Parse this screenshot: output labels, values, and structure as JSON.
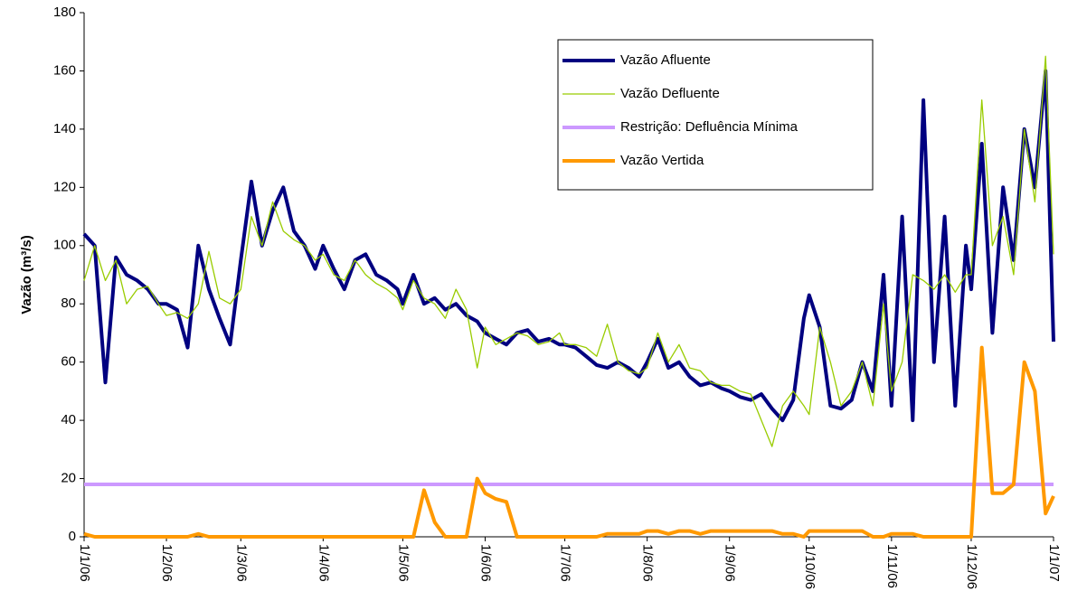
{
  "chart_data": {
    "type": "line",
    "ylabel": "Vazão (m³/s)",
    "x": [
      "1/1/06",
      "5/1/06",
      "9/1/06",
      "13/1/06",
      "17/1/06",
      "21/1/06",
      "25/1/06",
      "29/1/06",
      "1/2/06",
      "5/2/06",
      "9/2/06",
      "13/2/06",
      "17/2/06",
      "21/2/06",
      "25/2/06",
      "1/3/06",
      "5/3/06",
      "9/3/06",
      "13/3/06",
      "17/3/06",
      "21/3/06",
      "25/3/06",
      "29/3/06",
      "1/4/06",
      "5/4/06",
      "9/4/06",
      "13/4/06",
      "17/4/06",
      "21/4/06",
      "25/4/06",
      "29/4/06",
      "1/5/06",
      "5/5/06",
      "9/5/06",
      "13/5/06",
      "17/5/06",
      "21/5/06",
      "25/5/06",
      "29/5/06",
      "1/6/06",
      "5/6/06",
      "9/6/06",
      "13/6/06",
      "17/6/06",
      "21/6/06",
      "25/6/06",
      "29/6/06",
      "1/7/06",
      "5/7/06",
      "9/7/06",
      "13/7/06",
      "17/7/06",
      "21/7/06",
      "25/7/06",
      "29/7/06",
      "1/8/06",
      "5/8/06",
      "9/8/06",
      "13/8/06",
      "17/8/06",
      "21/8/06",
      "25/8/06",
      "29/8/06",
      "1/9/06",
      "5/9/06",
      "9/9/06",
      "13/9/06",
      "17/9/06",
      "21/9/06",
      "25/9/06",
      "29/9/06",
      "1/10/06",
      "5/10/06",
      "9/10/06",
      "13/10/06",
      "17/10/06",
      "21/10/06",
      "25/10/06",
      "29/10/06",
      "1/11/06",
      "5/11/06",
      "9/11/06",
      "13/11/06",
      "17/11/06",
      "21/11/06",
      "25/11/06",
      "29/11/06",
      "1/12/06",
      "5/12/06",
      "9/12/06",
      "13/12/06",
      "17/12/06",
      "21/12/06",
      "25/12/06",
      "29/12/06",
      "1/1/07"
    ],
    "series": [
      {
        "name": "Vazão Afluente",
        "color": "#000080",
        "width": 4,
        "values": [
          104,
          100,
          53,
          96,
          90,
          88,
          85,
          80,
          80,
          78,
          65,
          100,
          85,
          75,
          66,
          95,
          122,
          100,
          112,
          120,
          105,
          100,
          92,
          100,
          92,
          85,
          95,
          97,
          90,
          88,
          85,
          80,
          90,
          80,
          82,
          78,
          80,
          76,
          74,
          70,
          68,
          66,
          70,
          71,
          67,
          68,
          66,
          66,
          65,
          62,
          59,
          58,
          60,
          58,
          55,
          60,
          68,
          58,
          60,
          55,
          52,
          53,
          51,
          50,
          48,
          47,
          49,
          44,
          40,
          47,
          75,
          83,
          72,
          45,
          44,
          47,
          60,
          50,
          90,
          45,
          110,
          40,
          150,
          60,
          110,
          45,
          100,
          85,
          135,
          70,
          120,
          95,
          140,
          120,
          160,
          67
        ]
      },
      {
        "name": "Vazão Defluente",
        "color": "#99cc00",
        "width": 1.3,
        "values": [
          88,
          100,
          88,
          95,
          80,
          85,
          86,
          80,
          76,
          77,
          75,
          80,
          98,
          82,
          80,
          85,
          110,
          100,
          115,
          105,
          102,
          100,
          95,
          97,
          90,
          88,
          95,
          90,
          87,
          85,
          82,
          78,
          88,
          82,
          80,
          75,
          85,
          78,
          58,
          72,
          66,
          68,
          70,
          69,
          66,
          67,
          70,
          66,
          66,
          65,
          62,
          73,
          60,
          57,
          56,
          58,
          70,
          60,
          66,
          58,
          57,
          53,
          52,
          52,
          50,
          49,
          40,
          31,
          45,
          50,
          45,
          42,
          72,
          60,
          45,
          50,
          60,
          45,
          80,
          50,
          60,
          90,
          88,
          85,
          90,
          84,
          90,
          90,
          150,
          100,
          110,
          90,
          140,
          115,
          165,
          97
        ]
      },
      {
        "name": "Restrição: Defluência Mínima",
        "color": "#cc99ff",
        "width": 4,
        "values": [
          18,
          18,
          18,
          18,
          18,
          18,
          18,
          18,
          18,
          18,
          18,
          18,
          18,
          18,
          18,
          18,
          18,
          18,
          18,
          18,
          18,
          18,
          18,
          18,
          18,
          18,
          18,
          18,
          18,
          18,
          18,
          18,
          18,
          18,
          18,
          18,
          18,
          18,
          18,
          18,
          18,
          18,
          18,
          18,
          18,
          18,
          18,
          18,
          18,
          18,
          18,
          18,
          18,
          18,
          18,
          18,
          18,
          18,
          18,
          18,
          18,
          18,
          18,
          18,
          18,
          18,
          18,
          18,
          18,
          18,
          18,
          18,
          18,
          18,
          18,
          18,
          18,
          18,
          18,
          18,
          18,
          18,
          18,
          18,
          18,
          18,
          18,
          18,
          18,
          18,
          18,
          18,
          18,
          18,
          18,
          18
        ]
      },
      {
        "name": "Vazão Vertida",
        "color": "#ff9900",
        "width": 4,
        "values": [
          1,
          0,
          0,
          0,
          0,
          0,
          0,
          0,
          0,
          0,
          0,
          1,
          0,
          0,
          0,
          0,
          0,
          0,
          0,
          0,
          0,
          0,
          0,
          0,
          0,
          0,
          0,
          0,
          0,
          0,
          0,
          0,
          0,
          16,
          5,
          0,
          0,
          0,
          20,
          15,
          13,
          12,
          0,
          0,
          0,
          0,
          0,
          0,
          0,
          0,
          0,
          1,
          1,
          1,
          1,
          2,
          2,
          1,
          2,
          2,
          1,
          2,
          2,
          2,
          2,
          2,
          2,
          2,
          1,
          1,
          0,
          2,
          2,
          2,
          2,
          2,
          2,
          0,
          0,
          1,
          1,
          1,
          0,
          0,
          0,
          0,
          0,
          0,
          65,
          15,
          15,
          18,
          60,
          50,
          8,
          14
        ]
      }
    ],
    "xlim": [
      "1/1/06",
      "1/1/07"
    ],
    "xticks": [
      "1/1/06",
      "1/2/06",
      "1/3/06",
      "1/4/06",
      "1/5/06",
      "1/6/06",
      "1/7/06",
      "1/8/06",
      "1/9/06",
      "1/10/06",
      "1/11/06",
      "1/12/06",
      "1/1/07"
    ],
    "ylim": [
      0,
      180
    ],
    "yticks": [
      0,
      20,
      40,
      60,
      80,
      100,
      120,
      140,
      160,
      180
    ],
    "grid": false,
    "legend": "upper right"
  }
}
